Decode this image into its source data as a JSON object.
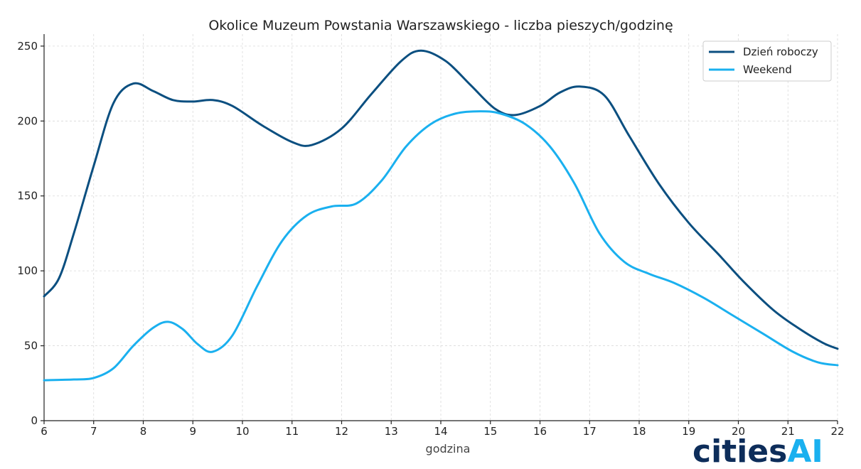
{
  "chart_data": {
    "type": "line",
    "title": "Okolice Muzeum Powstania Warszawskiego -  liczba pieszych/godzinę",
    "xlabel": "godzina",
    "ylabel": "",
    "xlim": [
      6,
      22
    ],
    "ylim": [
      0,
      258
    ],
    "xticks": [
      6,
      7,
      8,
      9,
      10,
      11,
      12,
      13,
      14,
      15,
      16,
      17,
      18,
      19,
      20,
      21,
      22
    ],
    "yticks": [
      0,
      50,
      100,
      150,
      200,
      250
    ],
    "grid": true,
    "legend": "top-right",
    "series": [
      {
        "name": "Dzień roboczy",
        "color": "#0b4f80",
        "x": [
          6,
          6.3,
          6.6,
          7,
          7.4,
          7.8,
          8.2,
          8.6,
          9,
          9.4,
          9.8,
          10.4,
          11,
          11.4,
          12,
          12.6,
          13.2,
          13.6,
          14.1,
          14.6,
          15.1,
          15.5,
          16,
          16.4,
          16.8,
          17.3,
          17.8,
          18.4,
          19,
          19.6,
          20.1,
          20.7,
          21.2,
          21.7,
          22
        ],
        "y": [
          83,
          95,
          125,
          170,
          212,
          225,
          220,
          214,
          213,
          214,
          210,
          197,
          186,
          184,
          195,
          218,
          240,
          247,
          240,
          224,
          208,
          204,
          210,
          219,
          223,
          217,
          190,
          158,
          132,
          111,
          93,
          74,
          62,
          52,
          48
        ]
      },
      {
        "name": "Weekend",
        "color": "#1ab0ef",
        "x": [
          6,
          6.6,
          7,
          7.4,
          7.8,
          8.2,
          8.5,
          8.8,
          9.1,
          9.4,
          9.8,
          10.3,
          10.8,
          11.3,
          11.8,
          12.3,
          12.8,
          13.3,
          13.8,
          14.3,
          14.8,
          15.2,
          15.7,
          16.2,
          16.7,
          17.2,
          17.7,
          18.2,
          18.7,
          19.3,
          19.9,
          20.5,
          21.1,
          21.6,
          22
        ],
        "y": [
          27,
          27.5,
          28.5,
          35,
          50,
          62,
          66,
          61,
          51,
          46,
          57,
          90,
          120,
          137,
          143,
          145,
          160,
          183,
          198,
          205,
          206.5,
          205,
          198,
          183,
          158,
          125,
          106,
          98,
          92,
          82,
          70,
          58,
          46,
          39,
          37
        ]
      }
    ]
  },
  "logo": {
    "part1": "cities",
    "part2": "AI",
    "colors": {
      "part1": "#0d2d5a",
      "part2": "#1ab0ef"
    }
  }
}
